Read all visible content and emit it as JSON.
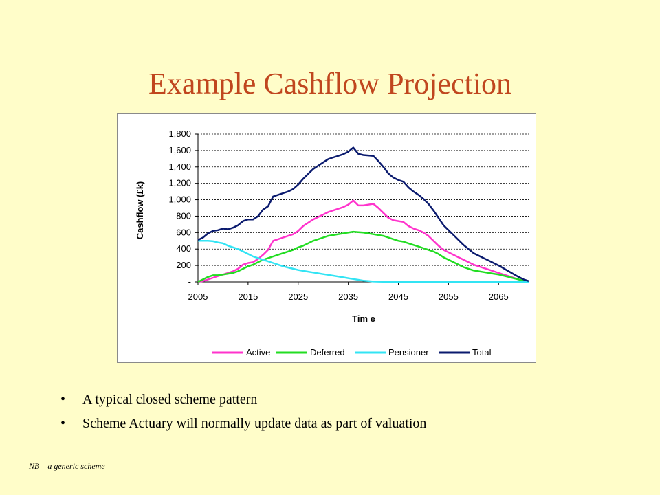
{
  "slide": {
    "title": "Example Cashflow Projection",
    "bullets": [
      "A typical closed scheme pattern",
      "Scheme Actuary will normally update data as part of valuation"
    ],
    "bullet_glyph": "•",
    "footnote": "NB – a generic scheme"
  },
  "chart_data": {
    "type": "line",
    "xlabel": "Tim e",
    "ylabel": "Cashflow (£k)",
    "xlim": [
      2005,
      2071
    ],
    "ylim": [
      0,
      1800
    ],
    "xticks": [
      2005,
      2015,
      2025,
      2035,
      2045,
      2055,
      2065
    ],
    "xtick_labels": [
      "2005",
      "2015",
      "2025",
      "2035",
      "2045",
      "2055",
      "2065"
    ],
    "yticks": [
      0,
      200,
      400,
      600,
      800,
      1000,
      1200,
      1400,
      1600,
      1800
    ],
    "ytick_labels": [
      "-",
      "200",
      "400",
      "600",
      "800",
      "1,000",
      "1,200",
      "1,400",
      "1,600",
      "1,800"
    ],
    "grid": "horizontal dashed",
    "legend_position": "bottom",
    "x": [
      2005,
      2006,
      2007,
      2008,
      2009,
      2010,
      2011,
      2012,
      2013,
      2014,
      2015,
      2016,
      2017,
      2018,
      2019,
      2020,
      2021,
      2022,
      2023,
      2024,
      2025,
      2026,
      2027,
      2028,
      2029,
      2030,
      2031,
      2032,
      2033,
      2034,
      2035,
      2036,
      2037,
      2038,
      2039,
      2040,
      2041,
      2042,
      2043,
      2044,
      2045,
      2046,
      2047,
      2048,
      2049,
      2050,
      2051,
      2052,
      2053,
      2054,
      2055,
      2056,
      2057,
      2058,
      2059,
      2060,
      2061,
      2062,
      2063,
      2064,
      2065,
      2066,
      2067,
      2068,
      2069,
      2070,
      2071
    ],
    "series": [
      {
        "name": "Active",
        "color": "#ff33cc",
        "values": [
          0,
          10,
          30,
          50,
          70,
          90,
          110,
          130,
          160,
          210,
          230,
          240,
          280,
          330,
          390,
          500,
          520,
          540,
          560,
          580,
          620,
          680,
          720,
          760,
          790,
          820,
          850,
          870,
          890,
          910,
          940,
          990,
          930,
          930,
          940,
          950,
          900,
          840,
          780,
          750,
          740,
          730,
          680,
          650,
          630,
          600,
          560,
          500,
          440,
          390,
          360,
          330,
          300,
          270,
          240,
          210,
          190,
          170,
          150,
          130,
          110,
          90,
          70,
          50,
          30,
          15,
          5
        ]
      },
      {
        "name": "Deferred",
        "color": "#22dd22",
        "values": [
          0,
          30,
          60,
          80,
          80,
          90,
          100,
          110,
          130,
          160,
          190,
          210,
          240,
          270,
          290,
          310,
          330,
          350,
          370,
          390,
          420,
          440,
          470,
          500,
          520,
          540,
          560,
          570,
          580,
          590,
          600,
          610,
          605,
          600,
          590,
          580,
          570,
          560,
          540,
          520,
          500,
          490,
          470,
          450,
          430,
          410,
          390,
          370,
          340,
          300,
          270,
          240,
          210,
          180,
          160,
          140,
          130,
          120,
          110,
          100,
          90,
          75,
          60,
          45,
          30,
          15,
          5
        ]
      },
      {
        "name": "Pensioner",
        "color": "#33e4f4",
        "values": [
          500,
          500,
          500,
          495,
          480,
          470,
          440,
          420,
          400,
          370,
          340,
          310,
          290,
          270,
          250,
          230,
          210,
          190,
          175,
          160,
          145,
          135,
          125,
          115,
          105,
          95,
          85,
          75,
          65,
          55,
          45,
          35,
          25,
          15,
          10,
          5,
          3,
          2,
          1,
          0,
          0,
          0,
          0,
          0,
          0,
          0,
          0,
          0,
          0,
          0,
          0,
          0,
          0,
          0,
          0,
          0,
          0,
          0,
          0,
          0,
          0,
          0,
          0,
          0,
          0,
          0,
          0
        ]
      },
      {
        "name": "Total",
        "color": "#0a1a6e",
        "values": [
          510,
          540,
          590,
          620,
          630,
          650,
          640,
          660,
          690,
          740,
          760,
          760,
          800,
          880,
          920,
          1040,
          1060,
          1080,
          1100,
          1130,
          1185,
          1255,
          1315,
          1375,
          1415,
          1455,
          1495,
          1515,
          1535,
          1555,
          1585,
          1635,
          1560,
          1545,
          1540,
          1535,
          1470,
          1400,
          1320,
          1270,
          1240,
          1220,
          1150,
          1100,
          1060,
          1010,
          950,
          870,
          780,
          690,
          630,
          570,
          510,
          450,
          400,
          350,
          320,
          290,
          260,
          230,
          200,
          165,
          130,
          95,
          60,
          30,
          10
        ]
      }
    ]
  }
}
